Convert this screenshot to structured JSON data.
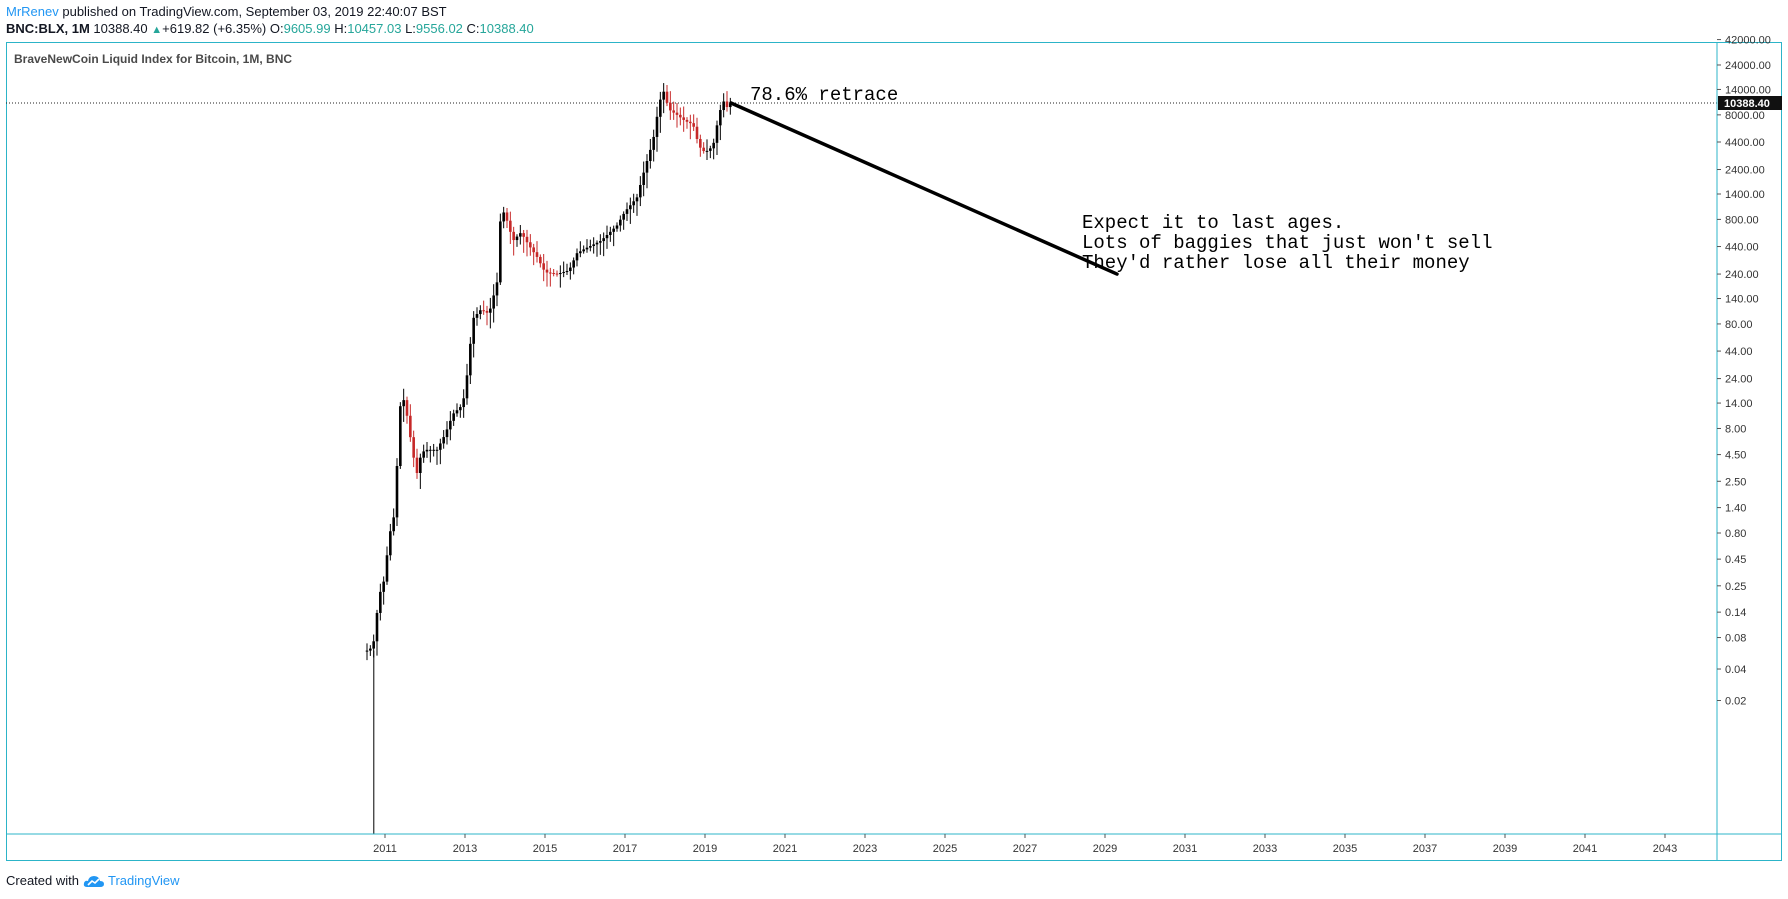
{
  "header": {
    "author": "MrRenev",
    "published_text": " published on TradingView.com, September 03, 2019 22:40:07 BST"
  },
  "ohlc": {
    "symbol": "BNC:BLX, 1M",
    "last": "10388.40",
    "change": "+619.82 (+6.35%)",
    "o_label": "O:",
    "o": "9605.99",
    "h_label": "H:",
    "h": "10457.03",
    "l_label": "L:",
    "l": "9556.02",
    "c_label": "C:",
    "c": "10388.40"
  },
  "legend": "BraveNewCoin Liquid Index for Bitcoin, 1M, BNC",
  "footer": {
    "created_with": "Created with",
    "brand": "TradingView"
  },
  "colors": {
    "up": "#000000",
    "down": "#c62828",
    "accent": "#2196f3",
    "frame": "#2cb4c8",
    "green": "#26a69a"
  },
  "chart_data": {
    "type": "candlestick",
    "title": "BraveNewCoin Liquid Index for Bitcoin, 1M, BNC",
    "y_scale": "log",
    "y_ticks": [
      "42000.00",
      "24000.00",
      "14000.00",
      "8000.00",
      "4400.00",
      "2400.00",
      "1400.00",
      "800.00",
      "440.00",
      "240.00",
      "140.00",
      "80.00",
      "44.00",
      "24.00",
      "14.00",
      "8.00",
      "4.50",
      "2.50",
      "1.40",
      "0.80",
      "0.45",
      "0.25",
      "0.14",
      "0.08",
      "0.04",
      "0.02"
    ],
    "x_ticks": [
      "2011",
      "2013",
      "2015",
      "2017",
      "2019",
      "2021",
      "2023",
      "2025",
      "2027",
      "2029",
      "2031",
      "2033",
      "2035",
      "2037",
      "2039",
      "2041",
      "2043"
    ],
    "last_price_label": "10388.40",
    "last_price": 10388.4,
    "close_path": [
      [
        2010.55,
        0.06
      ],
      [
        2010.7,
        0.065
      ],
      [
        2010.85,
        0.2
      ],
      [
        2011.0,
        0.3
      ],
      [
        2011.1,
        0.8
      ],
      [
        2011.2,
        0.9
      ],
      [
        2011.3,
        3.5
      ],
      [
        2011.4,
        17
      ],
      [
        2011.5,
        14
      ],
      [
        2011.6,
        8
      ],
      [
        2011.7,
        4.5
      ],
      [
        2011.8,
        3
      ],
      [
        2011.9,
        4.5
      ],
      [
        2012.0,
        5
      ],
      [
        2012.3,
        5
      ],
      [
        2012.5,
        7
      ],
      [
        2012.7,
        11
      ],
      [
        2012.9,
        13
      ],
      [
        2013.0,
        17
      ],
      [
        2013.2,
        90
      ],
      [
        2013.4,
        110
      ],
      [
        2013.6,
        100
      ],
      [
        2013.8,
        200
      ],
      [
        2013.9,
        1000
      ],
      [
        2014.0,
        900
      ],
      [
        2014.2,
        500
      ],
      [
        2014.4,
        600
      ],
      [
        2014.6,
        450
      ],
      [
        2014.8,
        350
      ],
      [
        2015.0,
        250
      ],
      [
        2015.3,
        240
      ],
      [
        2015.6,
        260
      ],
      [
        2015.8,
        380
      ],
      [
        2016.0,
        420
      ],
      [
        2016.4,
        500
      ],
      [
        2016.8,
        700
      ],
      [
        2017.0,
        950
      ],
      [
        2017.3,
        1300
      ],
      [
        2017.5,
        2500
      ],
      [
        2017.7,
        4500
      ],
      [
        2017.85,
        10000
      ],
      [
        2017.95,
        14000
      ],
      [
        2018.1,
        9000
      ],
      [
        2018.3,
        8000
      ],
      [
        2018.5,
        7000
      ],
      [
        2018.7,
        6500
      ],
      [
        2018.85,
        4000
      ],
      [
        2019.0,
        3500
      ],
      [
        2019.2,
        4000
      ],
      [
        2019.35,
        8000
      ],
      [
        2019.45,
        11000
      ],
      [
        2019.55,
        9500
      ],
      [
        2019.65,
        10388.4
      ]
    ],
    "drawings": [
      {
        "type": "trendline",
        "from": [
          2019.65,
          10388.4
        ],
        "to": [
          2029.3,
          240
        ]
      }
    ],
    "annotations": [
      {
        "text": "78.6% retrace"
      },
      {
        "text": "Expect it to last ages.\nLots of baggies that just won't sell\nThey'd rather lose all their money"
      }
    ]
  }
}
